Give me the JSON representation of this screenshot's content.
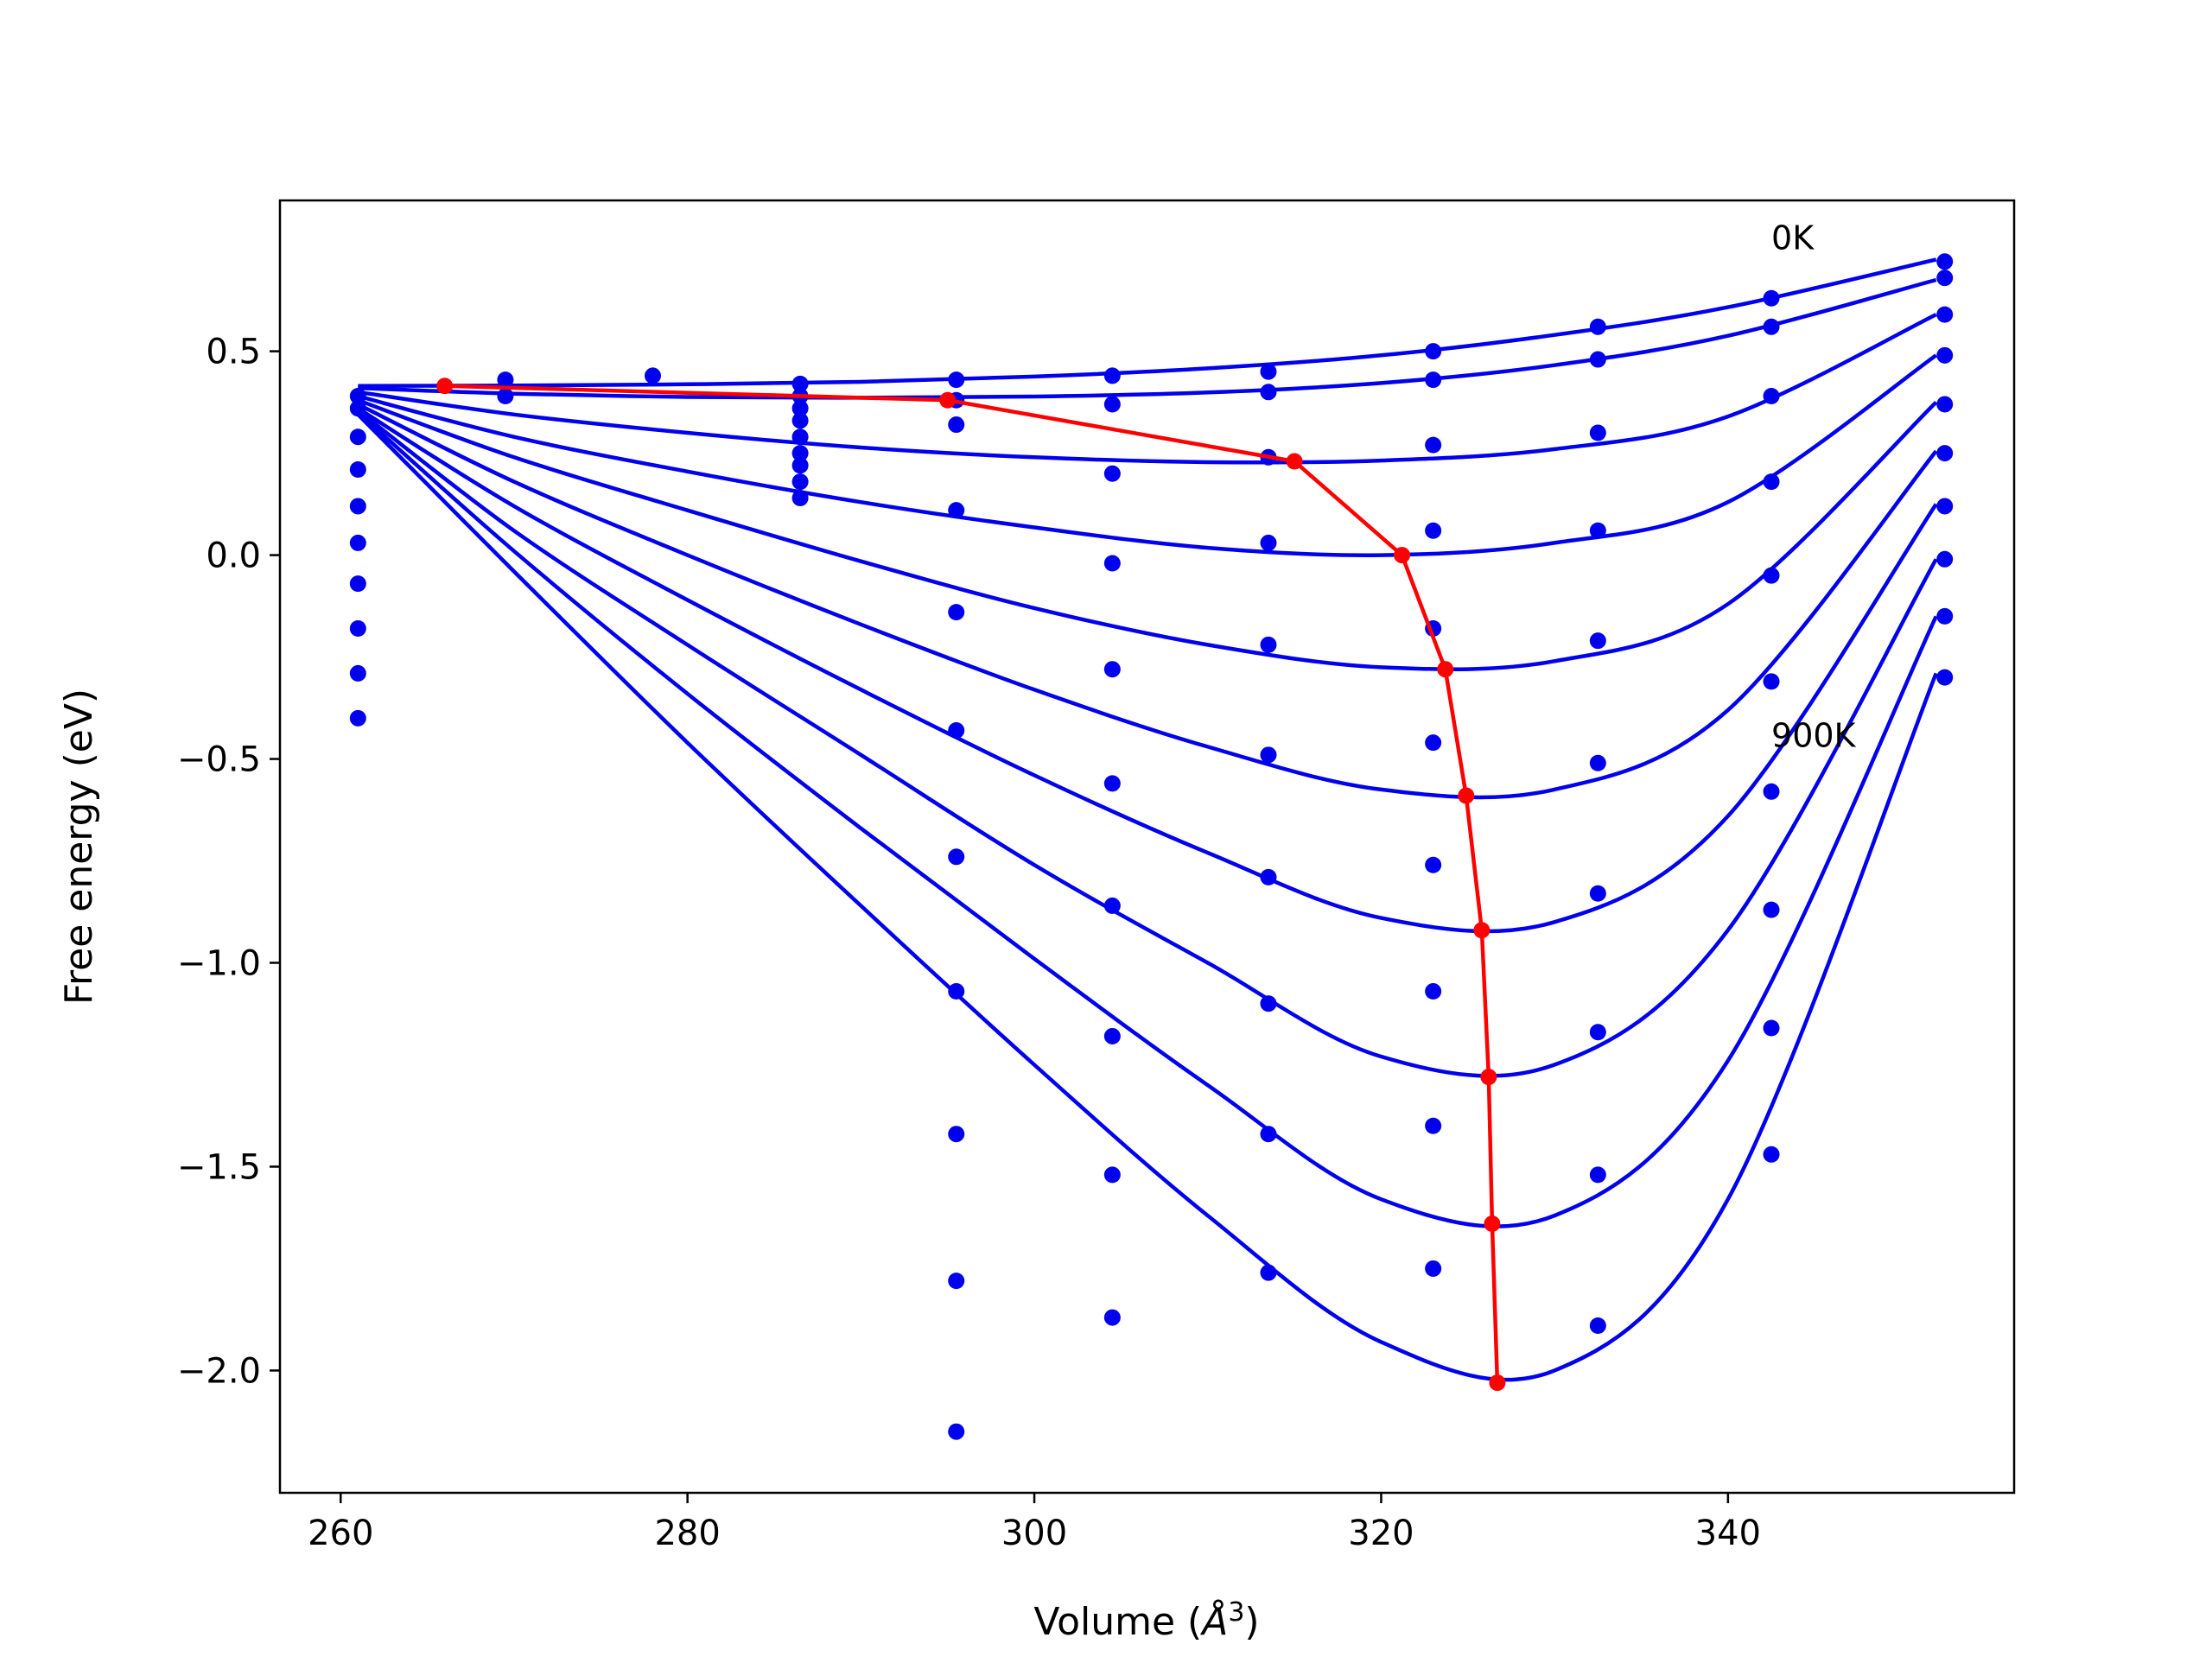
{
  "chart_data": {
    "type": "line",
    "title": "",
    "xlabel_main": "Volume (",
    "xlabel_unit": "Å",
    "xlabel_exp": "3",
    "xlabel_close": ")",
    "ylabel": "Free energy (eV)",
    "xlim": [
      256.5,
      356.5
    ],
    "ylim": [
      -2.3,
      0.87
    ],
    "xticks": [
      260,
      280,
      300,
      320,
      340
    ],
    "xtick_labels": [
      "260",
      "280",
      "300",
      "320",
      "340"
    ],
    "yticks": [
      0.5,
      0.0,
      -0.5,
      -1.0,
      -1.5,
      -2.0
    ],
    "ytick_labels": [
      "0.5",
      "0.0",
      "−0.5",
      "−1.0",
      "−1.5",
      "−2.0"
    ],
    "annotations": [
      {
        "text": "0K",
        "x": 342.5,
        "y": 0.75
      },
      {
        "text": "900K",
        "x": 342.5,
        "y": -0.47
      }
    ],
    "colors": {
      "fit_curve": "#0000ee",
      "data_point": "#0000ee",
      "minimum_path": "#ff0000"
    },
    "fit_curves": [
      {
        "x": [
          261,
          270,
          280,
          290,
          300,
          310,
          320,
          330,
          340,
          352
        ],
        "y": [
          0.415,
          0.416,
          0.419,
          0.425,
          0.438,
          0.458,
          0.49,
          0.54,
          0.608,
          0.725
        ]
      },
      {
        "x": [
          261,
          270,
          280,
          290,
          300,
          310,
          320,
          330,
          340,
          352
        ],
        "y": [
          0.41,
          0.396,
          0.388,
          0.386,
          0.389,
          0.399,
          0.422,
          0.466,
          0.538,
          0.675
        ]
      },
      {
        "x": [
          261,
          270,
          280,
          290,
          300,
          310,
          320,
          330,
          340,
          352
        ],
        "y": [
          0.4,
          0.345,
          0.3,
          0.264,
          0.24,
          0.228,
          0.232,
          0.26,
          0.34,
          0.59
        ]
      },
      {
        "x": [
          261,
          270,
          280,
          290,
          300,
          310,
          320,
          330,
          340,
          352
        ],
        "y": [
          0.39,
          0.29,
          0.205,
          0.13,
          0.068,
          0.018,
          0.0,
          0.03,
          0.13,
          0.49
        ]
      },
      {
        "x": [
          261,
          270,
          280,
          290,
          300,
          310,
          320,
          330,
          340,
          352
        ],
        "y": [
          0.38,
          0.24,
          0.11,
          -0.015,
          -0.13,
          -0.22,
          -0.275,
          -0.26,
          -0.12,
          0.375
        ]
      },
      {
        "x": [
          261,
          270,
          280,
          290,
          300,
          310,
          320,
          330,
          340,
          352
        ],
        "y": [
          0.37,
          0.18,
          0.0,
          -0.17,
          -0.33,
          -0.47,
          -0.575,
          -0.575,
          -0.38,
          0.255
        ]
      },
      {
        "x": [
          261,
          270,
          280,
          290,
          300,
          310,
          320,
          330,
          340,
          352
        ],
        "y": [
          0.36,
          0.12,
          -0.11,
          -0.33,
          -0.54,
          -0.73,
          -0.89,
          -0.9,
          -0.64,
          0.125
        ]
      },
      {
        "x": [
          261,
          270,
          280,
          290,
          300,
          310,
          320,
          330,
          340,
          352
        ],
        "y": [
          0.355,
          0.06,
          -0.22,
          -0.49,
          -0.76,
          -1.0,
          -1.23,
          -1.25,
          -0.92,
          -0.01
        ]
      },
      {
        "x": [
          261,
          270,
          280,
          290,
          300,
          310,
          320,
          330,
          340,
          352
        ],
        "y": [
          0.35,
          0.01,
          -0.34,
          -0.67,
          -0.99,
          -1.3,
          -1.58,
          -1.62,
          -1.24,
          -0.15
        ]
      },
      {
        "x": [
          261,
          270,
          280,
          290,
          300,
          310,
          320,
          330,
          340,
          352
        ],
        "y": [
          0.345,
          -0.04,
          -0.46,
          -0.86,
          -1.25,
          -1.62,
          -1.93,
          -2.0,
          -1.58,
          -0.29
        ]
      }
    ],
    "data_points": [
      {
        "x": 261,
        "y": 0.39
      },
      {
        "x": 261,
        "y": 0.36
      },
      {
        "x": 261,
        "y": 0.29
      },
      {
        "x": 261,
        "y": 0.21
      },
      {
        "x": 261,
        "y": 0.12
      },
      {
        "x": 261,
        "y": 0.03
      },
      {
        "x": 261,
        "y": -0.07
      },
      {
        "x": 261,
        "y": -0.18
      },
      {
        "x": 261,
        "y": -0.29
      },
      {
        "x": 261,
        "y": -0.4
      },
      {
        "x": 269.5,
        "y": 0.43
      },
      {
        "x": 269.5,
        "y": 0.39
      },
      {
        "x": 278,
        "y": 0.44
      },
      {
        "x": 286.5,
        "y": 0.42
      },
      {
        "x": 286.5,
        "y": 0.39
      },
      {
        "x": 286.5,
        "y": 0.36
      },
      {
        "x": 286.5,
        "y": 0.33
      },
      {
        "x": 286.5,
        "y": 0.29
      },
      {
        "x": 286.5,
        "y": 0.25
      },
      {
        "x": 286.5,
        "y": 0.22
      },
      {
        "x": 286.5,
        "y": 0.18
      },
      {
        "x": 286.5,
        "y": 0.14
      },
      {
        "x": 295.5,
        "y": 0.43
      },
      {
        "x": 295.5,
        "y": 0.38
      },
      {
        "x": 295.5,
        "y": 0.32
      },
      {
        "x": 295.5,
        "y": 0.11
      },
      {
        "x": 295.5,
        "y": -0.14
      },
      {
        "x": 295.5,
        "y": -0.43
      },
      {
        "x": 295.5,
        "y": -0.74
      },
      {
        "x": 295.5,
        "y": -1.07
      },
      {
        "x": 295.5,
        "y": -1.42
      },
      {
        "x": 295.5,
        "y": -1.78
      },
      {
        "x": 295.5,
        "y": -2.15
      },
      {
        "x": 304.5,
        "y": 0.44
      },
      {
        "x": 304.5,
        "y": 0.37
      },
      {
        "x": 304.5,
        "y": 0.2
      },
      {
        "x": 304.5,
        "y": -0.02
      },
      {
        "x": 304.5,
        "y": -0.28
      },
      {
        "x": 304.5,
        "y": -0.56
      },
      {
        "x": 304.5,
        "y": -0.86
      },
      {
        "x": 304.5,
        "y": -1.18
      },
      {
        "x": 304.5,
        "y": -1.52
      },
      {
        "x": 304.5,
        "y": -1.87
      },
      {
        "x": 313.5,
        "y": 0.45
      },
      {
        "x": 313.5,
        "y": 0.4
      },
      {
        "x": 313.5,
        "y": 0.24
      },
      {
        "x": 313.5,
        "y": 0.03
      },
      {
        "x": 313.5,
        "y": -0.22
      },
      {
        "x": 313.5,
        "y": -0.49
      },
      {
        "x": 313.5,
        "y": -0.79
      },
      {
        "x": 313.5,
        "y": -1.1
      },
      {
        "x": 313.5,
        "y": -1.42
      },
      {
        "x": 313.5,
        "y": -1.76
      },
      {
        "x": 323,
        "y": 0.5
      },
      {
        "x": 323,
        "y": 0.43
      },
      {
        "x": 323,
        "y": 0.27
      },
      {
        "x": 323,
        "y": 0.06
      },
      {
        "x": 323,
        "y": -0.18
      },
      {
        "x": 323,
        "y": -0.46
      },
      {
        "x": 323,
        "y": -0.76
      },
      {
        "x": 323,
        "y": -1.07
      },
      {
        "x": 323,
        "y": -1.4
      },
      {
        "x": 323,
        "y": -1.75
      },
      {
        "x": 332.5,
        "y": 0.56
      },
      {
        "x": 332.5,
        "y": 0.48
      },
      {
        "x": 332.5,
        "y": 0.3
      },
      {
        "x": 332.5,
        "y": 0.06
      },
      {
        "x": 332.5,
        "y": -0.21
      },
      {
        "x": 332.5,
        "y": -0.51
      },
      {
        "x": 332.5,
        "y": -0.83
      },
      {
        "x": 332.5,
        "y": -1.17
      },
      {
        "x": 332.5,
        "y": -1.52
      },
      {
        "x": 332.5,
        "y": -1.89
      },
      {
        "x": 342.5,
        "y": 0.63
      },
      {
        "x": 342.5,
        "y": 0.56
      },
      {
        "x": 342.5,
        "y": 0.39
      },
      {
        "x": 342.5,
        "y": 0.18
      },
      {
        "x": 342.5,
        "y": -0.05
      },
      {
        "x": 342.5,
        "y": -0.31
      },
      {
        "x": 342.5,
        "y": -0.58
      },
      {
        "x": 342.5,
        "y": -0.87
      },
      {
        "x": 342.5,
        "y": -1.16
      },
      {
        "x": 342.5,
        "y": -1.47
      },
      {
        "x": 352.5,
        "y": 0.72
      },
      {
        "x": 352.5,
        "y": 0.68
      },
      {
        "x": 352.5,
        "y": 0.59
      },
      {
        "x": 352.5,
        "y": 0.49
      },
      {
        "x": 352.5,
        "y": 0.37
      },
      {
        "x": 352.5,
        "y": 0.25
      },
      {
        "x": 352.5,
        "y": 0.12
      },
      {
        "x": 352.5,
        "y": -0.01
      },
      {
        "x": 352.5,
        "y": -0.15
      },
      {
        "x": 352.5,
        "y": -0.3
      }
    ],
    "minimum_path": {
      "x": [
        266,
        295,
        315,
        321.2,
        323.7,
        324.9,
        325.8,
        326.2,
        326.4,
        326.7
      ],
      "y": [
        0.415,
        0.38,
        0.23,
        0.0,
        -0.28,
        -0.59,
        -0.92,
        -1.28,
        -1.64,
        -2.03
      ]
    }
  }
}
